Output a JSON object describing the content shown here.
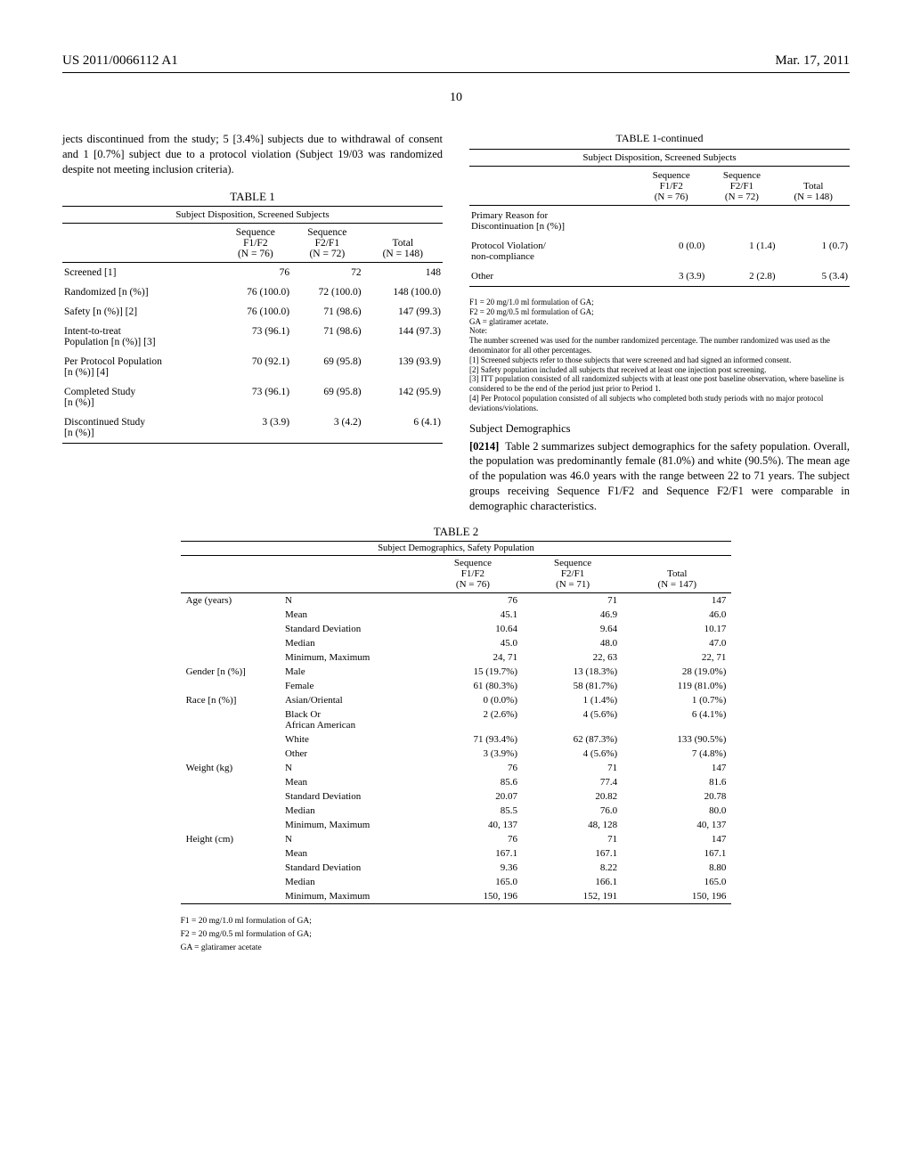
{
  "header": {
    "publication": "US 2011/0066112 A1",
    "date": "Mar. 17, 2011",
    "page": "10"
  },
  "intro": "jects discontinued from the study; 5 [3.4%] subjects due to withdrawal of consent and 1 [0.7%] subject due to a protocol violation (Subject 19/03 was randomized despite not meeting inclusion criteria).",
  "table1": {
    "caption": "TABLE 1",
    "subtitle": "Subject Disposition, Screened Subjects",
    "cols": [
      "Sequence\nF1/F2\n(N = 76)",
      "Sequence\nF2/F1\n(N = 72)",
      "Total\n(N = 148)"
    ],
    "rows": [
      {
        "label": "Screened [1]",
        "v": [
          "76",
          "72",
          "148"
        ]
      },
      {
        "label": "Randomized [n (%)]",
        "v": [
          "76 (100.0)",
          "72 (100.0)",
          "148 (100.0)"
        ]
      },
      {
        "label": "Safety [n (%)] [2]",
        "v": [
          "76 (100.0)",
          "71 (98.6)",
          "147 (99.3)"
        ]
      },
      {
        "label": "Intent-to-treat\nPopulation [n (%)] [3]",
        "v": [
          "73 (96.1)",
          "71 (98.6)",
          "144 (97.3)"
        ]
      },
      {
        "label": "Per Protocol Population\n[n (%)] [4]",
        "v": [
          "70 (92.1)",
          "69 (95.8)",
          "139 (93.9)"
        ]
      },
      {
        "label": "Completed Study\n[n (%)]",
        "v": [
          "73 (96.1)",
          "69 (95.8)",
          "142 (95.9)"
        ]
      },
      {
        "label": "Discontinued Study\n[n (%)]",
        "v": [
          "3 (3.9)",
          "3 (4.2)",
          "6 (4.1)"
        ]
      }
    ]
  },
  "table1cont": {
    "caption": "TABLE 1-continued",
    "subtitle": "Subject Disposition, Screened Subjects",
    "cols": [
      "Sequence\nF1/F2\n(N = 76)",
      "Sequence\nF2/F1\n(N = 72)",
      "Total\n(N = 148)"
    ],
    "section": "Primary Reason for\nDiscontinuation [n (%)]",
    "rows": [
      {
        "label": "Protocol Violation/\nnon-compliance",
        "v": [
          "0 (0.0)",
          "1 (1.4)",
          "1 (0.7)"
        ]
      },
      {
        "label": "Other",
        "v": [
          "3 (3.9)",
          "2 (2.8)",
          "5 (3.4)"
        ]
      }
    ],
    "notes": [
      "F1 = 20 mg/1.0 ml formulation of GA;",
      "F2 = 20 mg/0.5 ml formulation of GA;",
      "GA = glatiramer acetate.",
      "Note:",
      "The number screened was used for the number randomized percentage. The number randomized was used as the denominator for all other percentages.",
      "[1] Screened subjects refer to those subjects that were screened and had signed an informed consent.",
      "[2] Safety population included all subjects that received at least one injection post screening.",
      "[3] ITT population consisted of all randomized subjects with at least one post baseline observation, where baseline is considered to be the end of the period just prior to Period 1.",
      "[4] Per Protocol population consisted of all subjects who completed both study periods with no major protocol deviations/violations."
    ]
  },
  "demographics": {
    "heading": "Subject Demographics",
    "paraNum": "[0214]",
    "para": "Table 2 summarizes subject demographics for the safety population. Overall, the population was predominantly female (81.0%) and white (90.5%). The mean age of the population was 46.0 years with the range between 22 to 71 years. The subject groups receiving Sequence F1/F2 and Sequence F2/F1 were comparable in demographic characteristics."
  },
  "table2": {
    "caption": "TABLE 2",
    "subtitle": "Subject Demographics, Safety Population",
    "cols": [
      "Sequence\nF1/F2\n(N = 76)",
      "Sequence\nF2/F1\n(N = 71)",
      "Total\n(N = 147)"
    ],
    "groups": [
      {
        "g": "Age (years)",
        "rows": [
          {
            "l": "N",
            "v": [
              "76",
              "71",
              "147"
            ]
          },
          {
            "l": "Mean",
            "v": [
              "45.1",
              "46.9",
              "46.0"
            ]
          },
          {
            "l": "Standard Deviation",
            "v": [
              "10.64",
              "9.64",
              "10.17"
            ]
          },
          {
            "l": "Median",
            "v": [
              "45.0",
              "48.0",
              "47.0"
            ]
          },
          {
            "l": "Minimum, Maximum",
            "v": [
              "24, 71",
              "22, 63",
              "22, 71"
            ]
          }
        ]
      },
      {
        "g": "Gender [n (%)]",
        "rows": [
          {
            "l": "Male",
            "v": [
              "15 (19.7%)",
              "13 (18.3%)",
              "28 (19.0%)"
            ]
          },
          {
            "l": "Female",
            "v": [
              "61 (80.3%)",
              "58 (81.7%)",
              "119 (81.0%)"
            ]
          }
        ]
      },
      {
        "g": "Race [n (%)]",
        "rows": [
          {
            "l": "Asian/Oriental",
            "v": [
              "0 (0.0%)",
              "1 (1.4%)",
              "1 (0.7%)"
            ]
          },
          {
            "l": "Black Or\nAfrican American",
            "v": [
              "2 (2.6%)",
              "4 (5.6%)",
              "6 (4.1%)"
            ]
          },
          {
            "l": "White",
            "v": [
              "71 (93.4%)",
              "62 (87.3%)",
              "133 (90.5%)"
            ]
          },
          {
            "l": "Other",
            "v": [
              "3 (3.9%)",
              "4 (5.6%)",
              "7 (4.8%)"
            ]
          }
        ]
      },
      {
        "g": "Weight (kg)",
        "rows": [
          {
            "l": "N",
            "v": [
              "76",
              "71",
              "147"
            ]
          },
          {
            "l": "Mean",
            "v": [
              "85.6",
              "77.4",
              "81.6"
            ]
          },
          {
            "l": "Standard Deviation",
            "v": [
              "20.07",
              "20.82",
              "20.78"
            ]
          },
          {
            "l": "Median",
            "v": [
              "85.5",
              "76.0",
              "80.0"
            ]
          },
          {
            "l": "Minimum, Maximum",
            "v": [
              "40, 137",
              "48, 128",
              "40, 137"
            ]
          }
        ]
      },
      {
        "g": "Height (cm)",
        "rows": [
          {
            "l": "N",
            "v": [
              "76",
              "71",
              "147"
            ]
          },
          {
            "l": "Mean",
            "v": [
              "167.1",
              "167.1",
              "167.1"
            ]
          },
          {
            "l": "Standard Deviation",
            "v": [
              "9.36",
              "8.22",
              "8.80"
            ]
          },
          {
            "l": "Median",
            "v": [
              "165.0",
              "166.1",
              "165.0"
            ]
          },
          {
            "l": "Minimum, Maximum",
            "v": [
              "150, 196",
              "152, 191",
              "150, 196"
            ]
          }
        ]
      }
    ],
    "notes": [
      "F1 = 20 mg/1.0 ml formulation of GA;",
      "F2 = 20 mg/0.5 ml formulation of GA;",
      "GA = glatiramer acetate"
    ]
  }
}
